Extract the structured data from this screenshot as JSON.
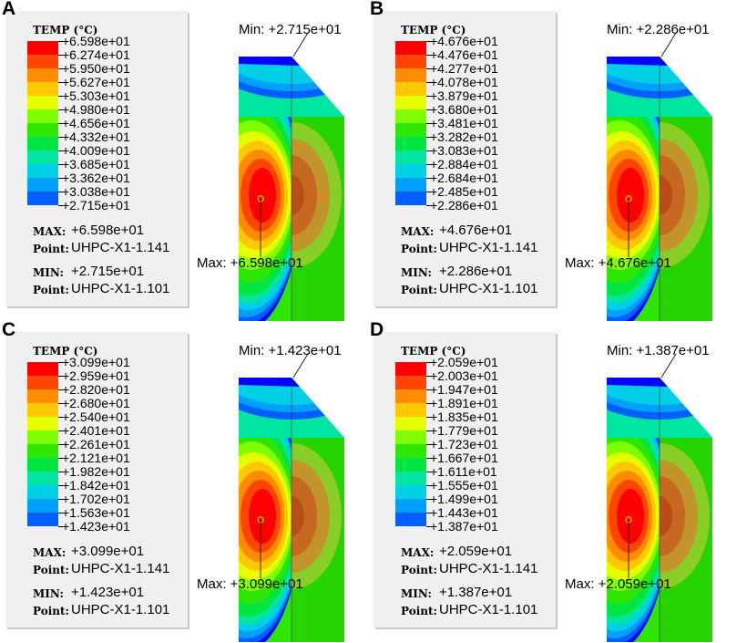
{
  "colors": [
    "#ff0000",
    "#ff4500",
    "#ff8c00",
    "#ffc800",
    "#e6ff00",
    "#7fff00",
    "#2ee600",
    "#00e640",
    "#00e6a0",
    "#00d0e6",
    "#00a0ff",
    "#0060ff",
    "#0000ff"
  ],
  "panels": [
    {
      "letter": "A",
      "legend_title": "TEMP  (°C)",
      "values": [
        "+6.598e+01",
        "+6.274e+01",
        "+5.950e+01",
        "+5.627e+01",
        "+5.303e+01",
        "+4.980e+01",
        "+4.656e+01",
        "+4.332e+01",
        "+4.009e+01",
        "+3.685e+01",
        "+3.362e+01",
        "+3.038e+01",
        "+2.715e+01"
      ],
      "max_label": "MAX:",
      "max_value": "+6.598e+01",
      "max_point_label": "Point:",
      "max_point": "UHPC-X1-1.141",
      "min_label": "MIN:",
      "min_value": "+2.715e+01",
      "min_point_label": "Point:",
      "min_point": "UHPC-X1-1.101",
      "min_annotation": "Min: +2.715e+01",
      "max_annotation": "Max: +6.598e+01"
    },
    {
      "letter": "B",
      "legend_title": "TEMP  (°C)",
      "values": [
        "+4.676e+01",
        "+4.476e+01",
        "+4.277e+01",
        "+4.078e+01",
        "+3.879e+01",
        "+3.680e+01",
        "+3.481e+01",
        "+3.282e+01",
        "+3.083e+01",
        "+2.884e+01",
        "+2.684e+01",
        "+2.485e+01",
        "+2.286e+01"
      ],
      "max_label": "MAX:",
      "max_value": "+4.676e+01",
      "max_point_label": "Point:",
      "max_point": "UHPC-X1-1.141",
      "min_label": "MIN:",
      "min_value": "+2.286e+01",
      "min_point_label": "Point:",
      "min_point": "UHPC-X1-1.101",
      "min_annotation": "Min: +2.286e+01",
      "max_annotation": "Max: +4.676e+01"
    },
    {
      "letter": "C",
      "legend_title": "TEMP  (°C)",
      "values": [
        "+3.099e+01",
        "+2.959e+01",
        "+2.820e+01",
        "+2.680e+01",
        "+2.540e+01",
        "+2.401e+01",
        "+2.261e+01",
        "+2.121e+01",
        "+1.982e+01",
        "+1.842e+01",
        "+1.702e+01",
        "+1.563e+01",
        "+1.423e+01"
      ],
      "max_label": "MAX:",
      "max_value": "+3.099e+01",
      "max_point_label": "Point:",
      "max_point": "UHPC-X1-1.141",
      "min_label": "MIN:",
      "min_value": "+1.423e+01",
      "min_point_label": "Point:",
      "min_point": "UHPC-X1-1.101",
      "min_annotation": "Min: +1.423e+01",
      "max_annotation": "Max: +3.099e+01"
    },
    {
      "letter": "D",
      "legend_title": "TEMP  (°C)",
      "values": [
        "+2.059e+01",
        "+2.003e+01",
        "+1.947e+01",
        "+1.891e+01",
        "+1.835e+01",
        "+1.779e+01",
        "+1.723e+01",
        "+1.667e+01",
        "+1.611e+01",
        "+1.555e+01",
        "+1.499e+01",
        "+1.443e+01",
        "+1.387e+01"
      ],
      "max_label": "MAX:",
      "max_value": "+2.059e+01",
      "max_point_label": "Point:",
      "max_point": "UHPC-X1-1.141",
      "min_label": "MIN:",
      "min_value": "+1.387e+01",
      "min_point_label": "Point:",
      "min_point": "UHPC-X1-1.101",
      "min_annotation": "Min: +1.387e+01",
      "max_annotation": "Max: +2.059e+01"
    }
  ]
}
